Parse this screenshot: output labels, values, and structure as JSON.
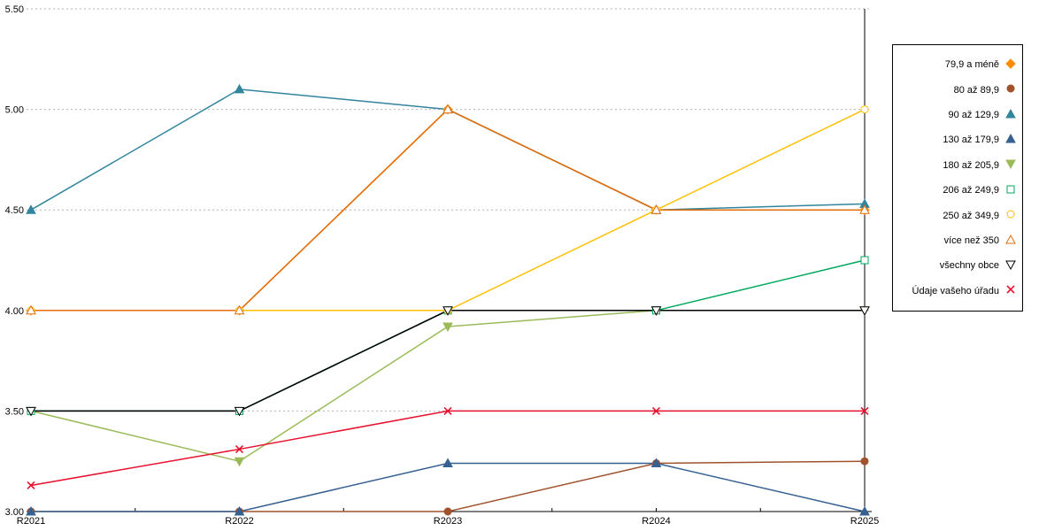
{
  "chart_data": {
    "type": "line",
    "x": [
      "R2021",
      "R2022",
      "R2023",
      "R2024",
      "R2025"
    ],
    "ylim": [
      3.0,
      5.5
    ],
    "yticks": [
      "3.00",
      "3.50",
      "4.00",
      "4.50",
      "5.00",
      "5.50"
    ],
    "grid": "horizontal-dotted",
    "legend_position": "right",
    "series": [
      {
        "name": "79,9 a méně",
        "color": "#FF8C00",
        "marker": "diamond",
        "fill": "solid",
        "values": [
          4.0,
          4.0,
          5.0,
          4.5,
          4.5
        ]
      },
      {
        "name": "80 až 89,9",
        "color": "#A0522D",
        "marker": "circle",
        "fill": "solid",
        "values": [
          3.0,
          3.0,
          3.0,
          3.24,
          3.25
        ]
      },
      {
        "name": "90 až 129,9",
        "color": "#31859C",
        "marker": "triangle-up",
        "fill": "solid",
        "values": [
          4.5,
          5.1,
          5.0,
          4.5,
          4.53
        ]
      },
      {
        "name": "130 až 179,9",
        "color": "#376092",
        "marker": "triangle-up",
        "fill": "solid",
        "values": [
          3.0,
          3.0,
          3.24,
          3.24,
          3.0
        ]
      },
      {
        "name": "180 až 205,9",
        "color": "#9BBB59",
        "marker": "triangle-down",
        "fill": "solid",
        "values": [
          3.5,
          3.25,
          3.92,
          4.0,
          4.0
        ]
      },
      {
        "name": "206 až 249,9",
        "color": "#00A85D",
        "marker": "square",
        "fill": "open",
        "values": [
          3.5,
          3.5,
          4.0,
          4.0,
          4.25
        ]
      },
      {
        "name": "250 až 349,9",
        "color": "#FFC000",
        "marker": "circle",
        "fill": "open",
        "values": [
          4.0,
          4.0,
          4.0,
          4.5,
          5.0
        ]
      },
      {
        "name": "více než 350",
        "color": "#E46C0A",
        "marker": "triangle-up",
        "fill": "open",
        "values": [
          4.0,
          4.0,
          5.0,
          4.5,
          4.5
        ]
      },
      {
        "name": "všechny obce",
        "color": "#000000",
        "marker": "triangle-down",
        "fill": "open",
        "values": [
          3.5,
          3.5,
          4.0,
          4.0,
          4.0
        ]
      },
      {
        "name": "Údaje vašeho úřadu",
        "color": "#E8112D",
        "marker": "x",
        "fill": "stroke",
        "values": [
          3.13,
          3.31,
          3.5,
          3.5,
          3.5
        ]
      }
    ]
  }
}
